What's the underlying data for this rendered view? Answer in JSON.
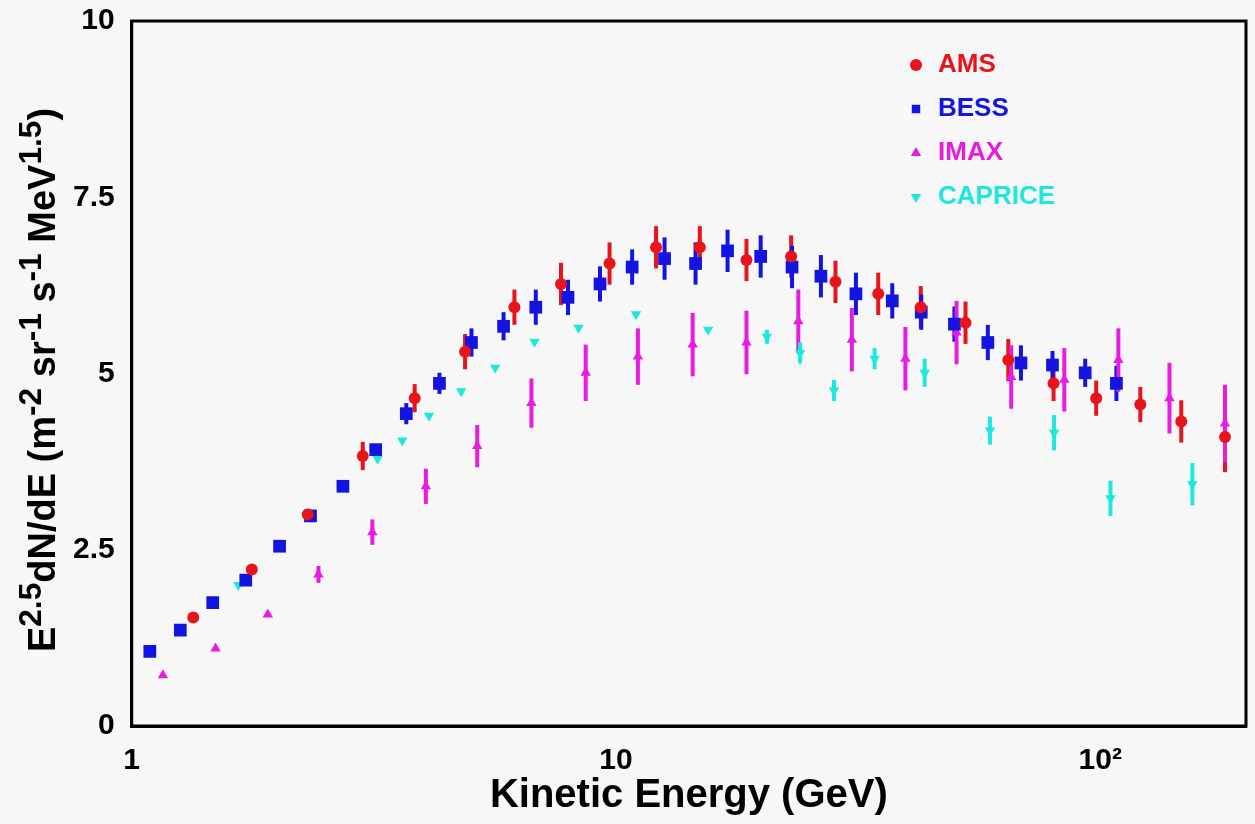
{
  "chart_data": {
    "type": "scatter",
    "xlabel": "Kinetic Energy (GeV)",
    "ylabel": "E$^{2.5}$dN/dE (m$^{-2}$ sr$^{-1}$ s$^{-1}$ MeV$^{1.5}$)",
    "log": "x",
    "xlim": [
      1,
      200
    ],
    "xticks": [
      1,
      10,
      {
        "value": 100,
        "label": "10²"
      }
    ],
    "ylim": [
      0,
      10
    ],
    "yticks": [
      0,
      2.5,
      5,
      7.5,
      10
    ],
    "grid": false,
    "legend": "top right",
    "series": [
      {
        "name": "AMS",
        "color": "#e8141c",
        "marker": "circle",
        "x": [
          1.34,
          1.77,
          2.31,
          3.0,
          3.84,
          4.88,
          6.17,
          7.7,
          9.7,
          12.1,
          14.9,
          18.6,
          23.0,
          28.4,
          34.8,
          42.6,
          52.7,
          64.6,
          80.1,
          98.1,
          121,
          147,
          181
        ],
        "values": [
          1.54,
          2.22,
          3.0,
          3.83,
          4.65,
          5.31,
          5.94,
          6.27,
          6.56,
          6.79,
          6.79,
          6.61,
          6.66,
          6.3,
          6.13,
          5.94,
          5.72,
          5.19,
          4.86,
          4.65,
          4.56,
          4.32,
          4.1
        ],
        "errors": [
          null,
          null,
          null,
          0.2,
          0.2,
          0.25,
          0.25,
          0.3,
          0.3,
          0.3,
          0.3,
          0.3,
          0.3,
          0.3,
          0.3,
          0.3,
          0.3,
          0.3,
          0.25,
          0.25,
          0.25,
          0.3,
          0.5
        ]
      },
      {
        "name": "BESS",
        "color": "#1414e0",
        "marker": "square",
        "x": [
          1.09,
          1.26,
          1.47,
          1.72,
          2.02,
          2.34,
          2.73,
          3.19,
          3.69,
          4.32,
          5.03,
          5.86,
          6.83,
          7.96,
          9.27,
          10.8,
          12.6,
          14.6,
          17.0,
          19.9,
          23.1,
          26.5,
          31.3,
          37.2,
          42.7,
          50.0,
          58.6,
          68.6,
          79.7,
          93.1,
          108
        ],
        "values": [
          1.06,
          1.36,
          1.75,
          2.07,
          2.55,
          2.98,
          3.4,
          3.92,
          4.43,
          4.86,
          5.44,
          5.67,
          5.94,
          6.08,
          6.27,
          6.51,
          6.63,
          6.56,
          6.74,
          6.66,
          6.51,
          6.38,
          6.13,
          6.03,
          5.87,
          5.7,
          5.44,
          5.15,
          5.12,
          5.01,
          4.86
        ],
        "errors": [
          null,
          null,
          null,
          null,
          null,
          null,
          null,
          null,
          0.15,
          0.15,
          0.2,
          0.2,
          0.25,
          0.25,
          0.25,
          0.25,
          0.3,
          0.3,
          0.3,
          0.3,
          0.3,
          0.3,
          0.3,
          0.25,
          0.25,
          0.25,
          0.25,
          0.25,
          0.2,
          0.2,
          0.25
        ]
      },
      {
        "name": "IMAX",
        "color": "#e81ce0",
        "marker": "triangle",
        "x": [
          1.16,
          1.49,
          1.91,
          2.43,
          3.14,
          4.05,
          5.17,
          6.69,
          8.66,
          11.1,
          14.4,
          18.6,
          23.8,
          30.7,
          39.6,
          50.5,
          65.5,
          84.3,
          109,
          139,
          181
        ],
        "values": [
          0.72,
          1.1,
          1.58,
          2.15,
          2.75,
          3.4,
          3.97,
          4.58,
          5.01,
          5.24,
          5.41,
          5.44,
          5.74,
          5.48,
          5.21,
          5.58,
          4.95,
          4.91,
          5.19,
          4.65,
          4.29
        ],
        "errors": [
          null,
          null,
          null,
          0.12,
          0.18,
          0.25,
          0.3,
          0.35,
          0.4,
          0.4,
          0.45,
          0.45,
          0.45,
          0.45,
          0.45,
          0.45,
          0.45,
          0.45,
          0.45,
          0.5,
          0.55
        ]
      },
      {
        "name": "CAPRICE",
        "color": "#1ce8e0",
        "marker": "triangle-down",
        "x": [
          1.66,
          3.22,
          3.62,
          4.11,
          4.79,
          5.63,
          6.79,
          8.37,
          11.0,
          15.5,
          20.5,
          24.0,
          28.2,
          34.2,
          43.4,
          59.2,
          80.3,
          105,
          155
        ],
        "values": [
          2.0,
          3.79,
          4.05,
          4.4,
          4.75,
          5.08,
          5.45,
          5.65,
          5.84,
          5.62,
          5.52,
          5.29,
          4.76,
          5.21,
          5.01,
          4.19,
          4.16,
          3.23,
          3.43
        ],
        "errors": [
          null,
          null,
          null,
          null,
          null,
          null,
          null,
          null,
          null,
          null,
          0.1,
          0.15,
          0.15,
          0.15,
          0.2,
          0.2,
          0.25,
          0.25,
          0.3
        ]
      }
    ]
  }
}
